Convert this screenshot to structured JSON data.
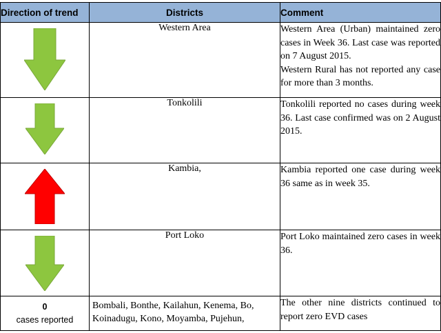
{
  "headers": {
    "direction": "Direction of trend",
    "districts": "Districts",
    "comment": "Comment"
  },
  "colors": {
    "header_bg": "#95b3d7",
    "arrow_down": "#8dc63f",
    "arrow_up": "#ff0000"
  },
  "rows": [
    {
      "trend": "down",
      "trend_icon": "green-down-arrow",
      "district": "Western Area",
      "comment": "Western Area (Urban) maintained zero cases in Week 36. Last case was reported on 7 August 2015.",
      "comment_2": "Western Rural has not reported any case for more than 3 months."
    },
    {
      "trend": "down",
      "trend_icon": "green-down-arrow",
      "district": "Tonkolili",
      "comment": "Tonkolili reported no cases during week 36. Last case confirmed was on 2 August 2015."
    },
    {
      "trend": "up",
      "trend_icon": "red-up-arrow",
      "district": "Kambia,",
      "comment": "Kambia reported one case during week 36 same as in week 35."
    },
    {
      "trend": "down",
      "trend_icon": "green-down-arrow",
      "district": "Port Loko",
      "comment": "Port Loko maintained zero cases in week 36."
    },
    {
      "zero_count": "0",
      "zero_label": "cases reported",
      "district": "Bombali, Bonthe, Kailahun, Kenema, Bo, Koinadugu, Kono, Moyamba, Pujehun,",
      "comment": "The other nine districts continued to report zero EVD cases"
    }
  ]
}
